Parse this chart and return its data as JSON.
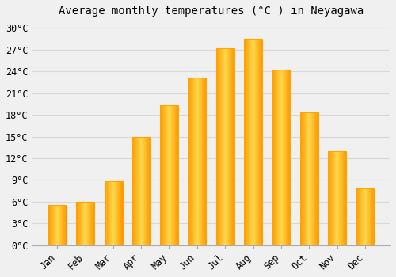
{
  "title": "Average monthly temperatures (°C ) in Neyagawa",
  "months": [
    "Jan",
    "Feb",
    "Mar",
    "Apr",
    "May",
    "Jun",
    "Jul",
    "Aug",
    "Sep",
    "Oct",
    "Nov",
    "Dec"
  ],
  "values": [
    5.5,
    6.0,
    8.8,
    15.0,
    19.3,
    23.2,
    27.2,
    28.5,
    24.3,
    18.3,
    13.0,
    7.8
  ],
  "bar_color_center": "#FFD966",
  "bar_color_edge": "#FFA500",
  "background_color": "#f0f0f0",
  "grid_color": "#d8d8d8",
  "ylim": [
    0,
    31
  ],
  "yticks": [
    0,
    3,
    6,
    9,
    12,
    15,
    18,
    21,
    24,
    27,
    30
  ],
  "ytick_labels": [
    "0°C",
    "3°C",
    "6°C",
    "9°C",
    "12°C",
    "15°C",
    "18°C",
    "21°C",
    "24°C",
    "27°C",
    "30°C"
  ],
  "title_fontsize": 10,
  "tick_fontsize": 8.5,
  "font_family": "monospace",
  "bar_width": 0.65
}
